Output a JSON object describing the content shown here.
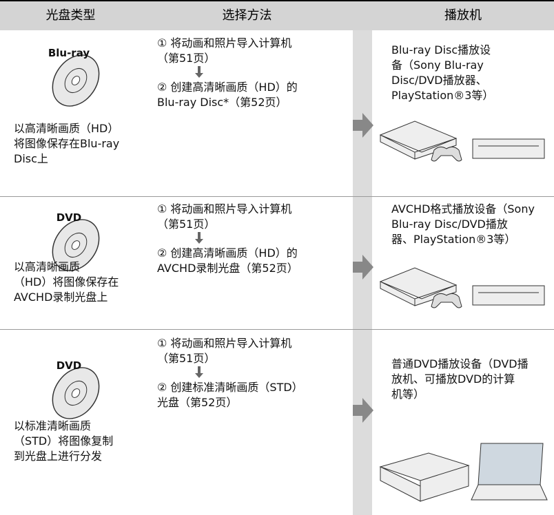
{
  "header": {
    "columns": [
      "光盘类型",
      "选择方法",
      "播放机"
    ]
  },
  "rows": [
    {
      "disc_label": "Blu-ray",
      "description": [
        "以高清晰画质（HD）",
        "将图像保存在Blu-ray",
        "Disc上"
      ],
      "step1": [
        "① 将动画和照片导入计算机",
        "（第51页）"
      ],
      "step2": [
        "② 创建高清晰画质（HD）的",
        "Blu-ray Disc*（第52页）"
      ],
      "player": [
        "Blu-ray Disc播放设",
        "备（Sony Blu-ray",
        "Disc/DVD播放器、",
        "PlayStation®3等）"
      ]
    },
    {
      "disc_label": "DVD",
      "description": [
        "以高清晰画质",
        "（HD）将图像保存在",
        "AVCHD录制光盘上"
      ],
      "step1": [
        "① 将动画和照片导入计算机",
        "（第51页）"
      ],
      "step2": [
        "② 创建高清晰画质（HD）的",
        "AVCHD录制光盘（第52页）"
      ],
      "player": [
        "AVCHD格式播放设备（Sony",
        "Blu-ray Disc/DVD播放",
        "器、PlayStation®3等）"
      ]
    },
    {
      "disc_label": "DVD",
      "description": [
        "以标准清晰画质",
        "（STD）将图像复制",
        "到光盘上进行分发"
      ],
      "step1": [
        "① 将动画和照片导入计算机",
        "（第51页）"
      ],
      "step2": [
        "② 创建标准清晰画质（STD）",
        "光盘（第52页）"
      ],
      "player": [
        "普通DVD播放设备（DVD播",
        "放机、可播放DVD的计算",
        "机等）"
      ]
    }
  ]
}
